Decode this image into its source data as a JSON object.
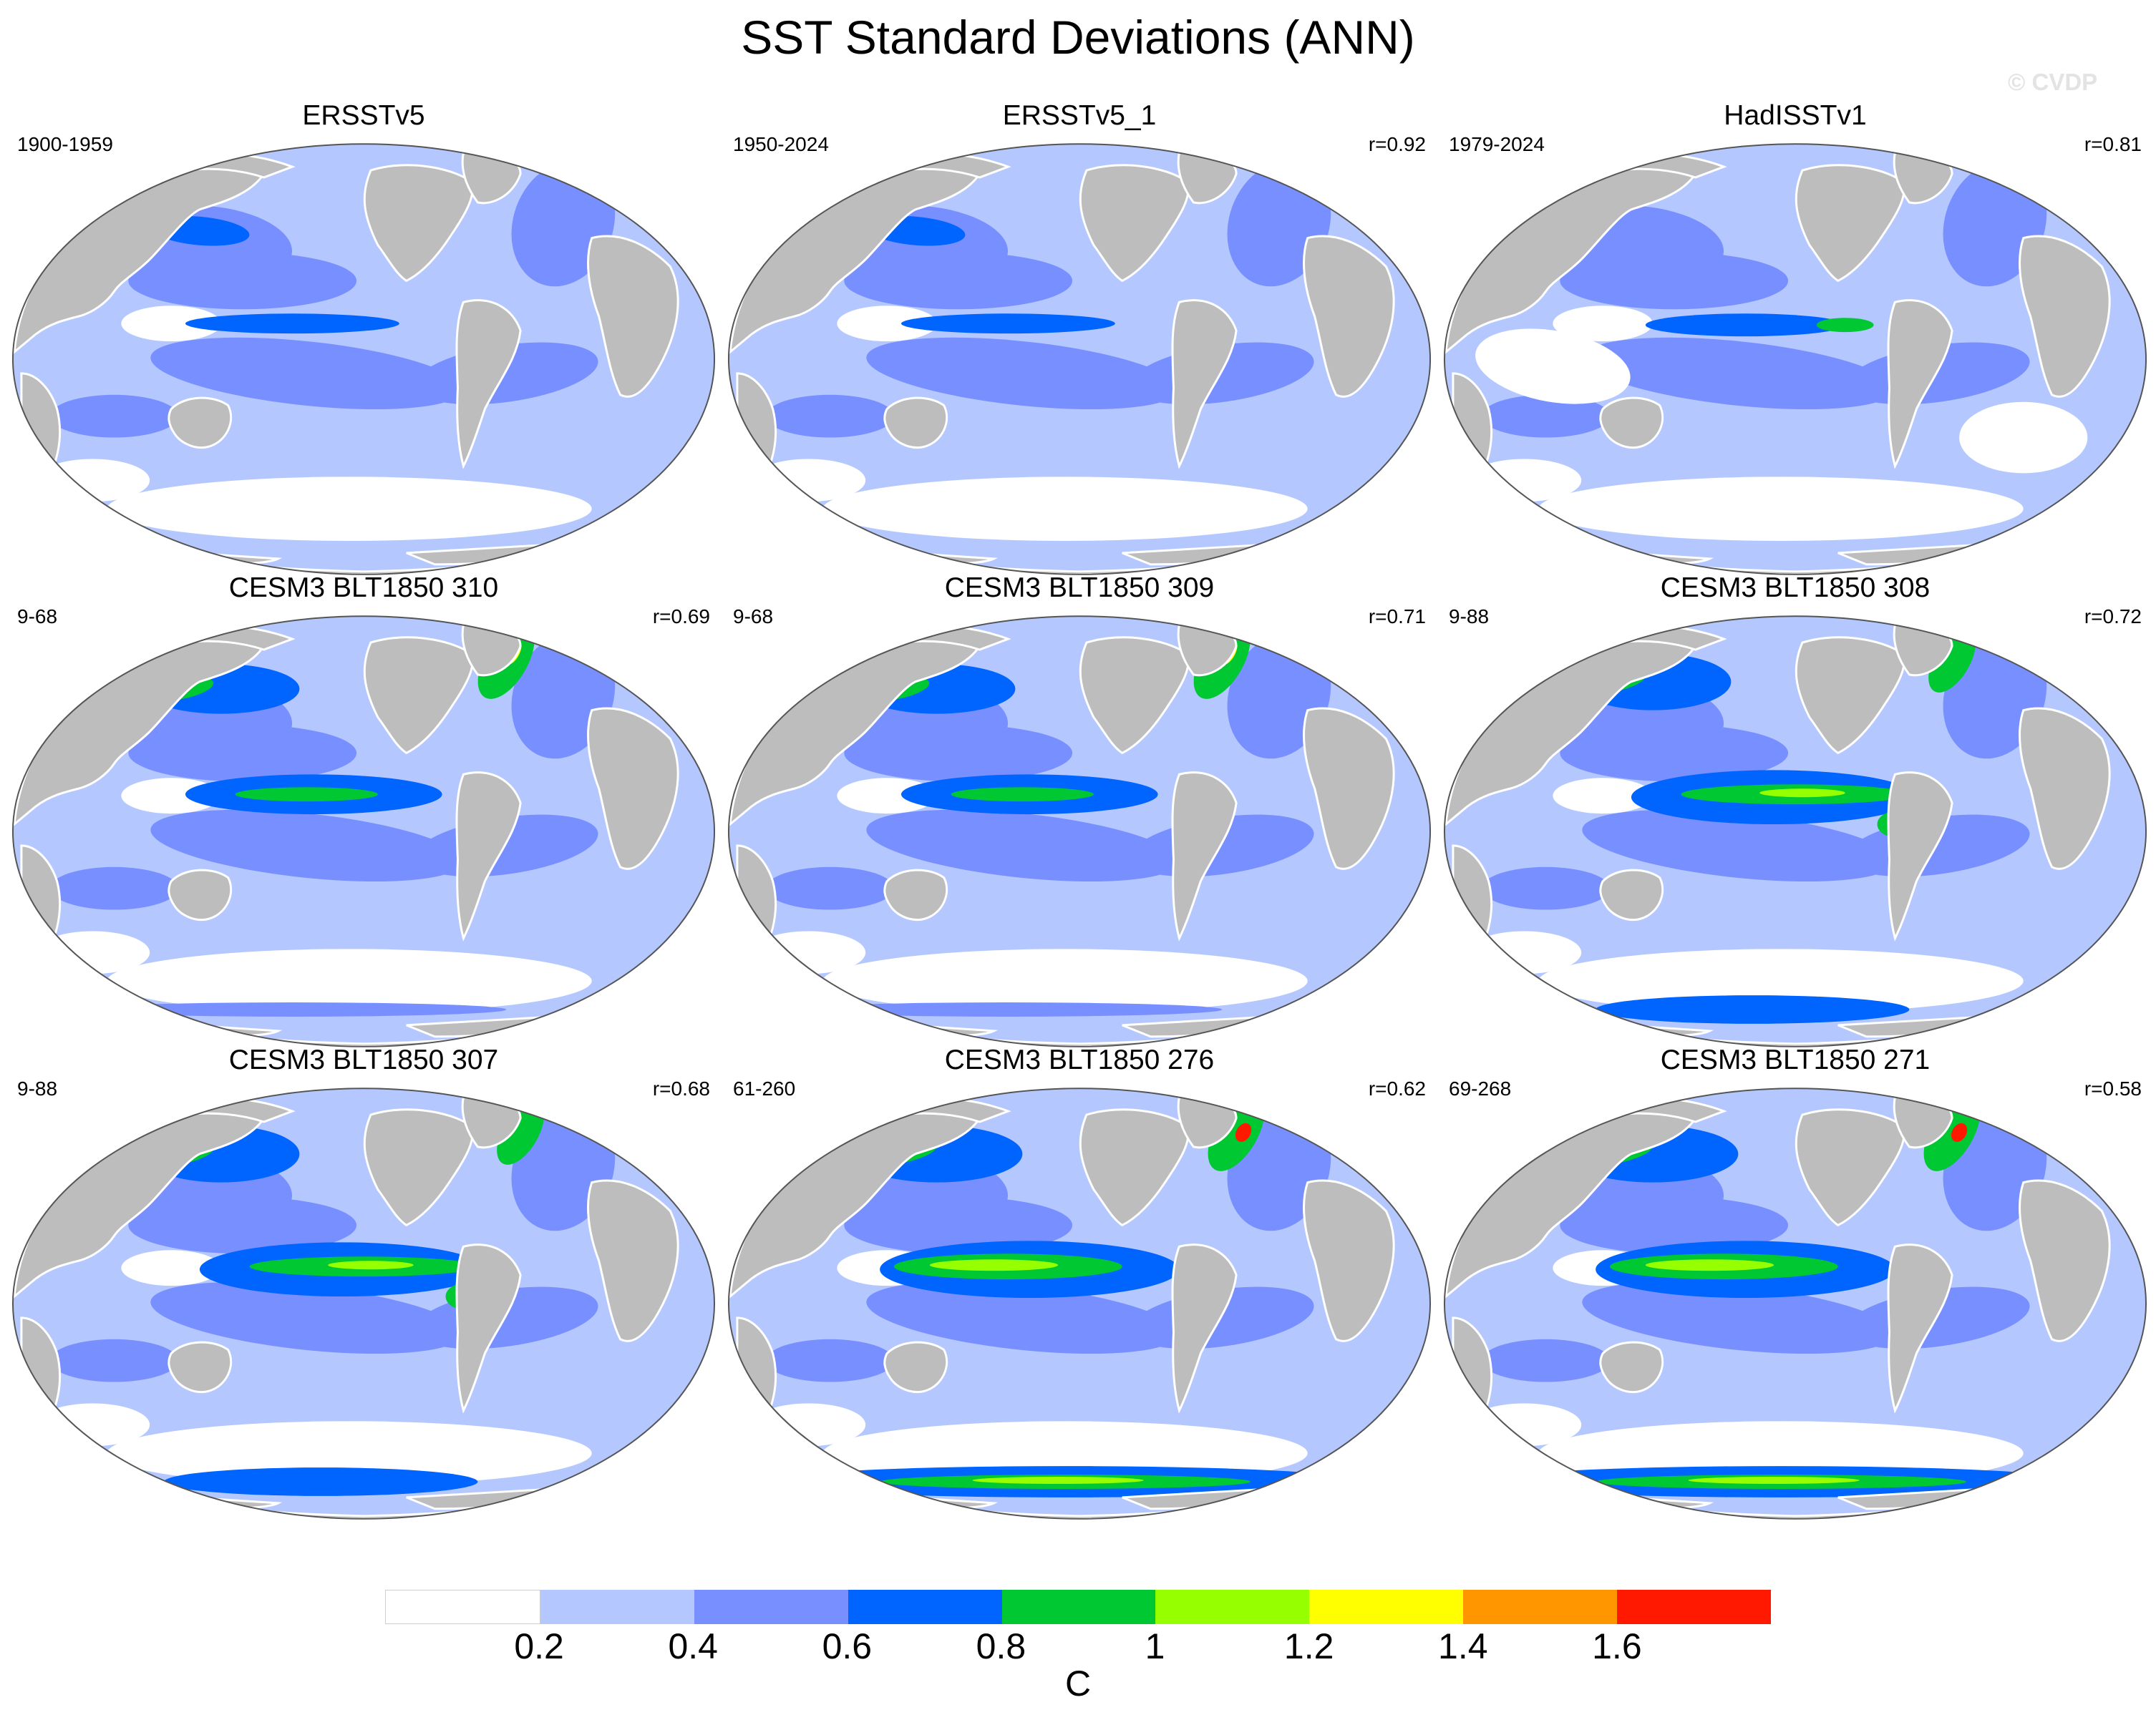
{
  "title": "SST Standard Deviations (ANN)",
  "watermark": "© CVDP",
  "panels": [
    {
      "title": "ERSSTv5",
      "period": "1900-1959",
      "corr": "",
      "variant": 0
    },
    {
      "title": "ERSSTv5_1",
      "period": "1950-2024",
      "corr": "r=0.92",
      "variant": 0
    },
    {
      "title": "HadISSTv1",
      "period": "1979-2024",
      "corr": "r=0.81",
      "variant": 1
    },
    {
      "title": "CESM3 BLT1850 310",
      "period": "9-68",
      "corr": "r=0.69",
      "variant": 2
    },
    {
      "title": "CESM3 BLT1850 309",
      "period": "9-68",
      "corr": "r=0.71",
      "variant": 2
    },
    {
      "title": "CESM3 BLT1850 308",
      "period": "9-88",
      "corr": "r=0.72",
      "variant": 3
    },
    {
      "title": "CESM3 BLT1850 307",
      "period": "9-88",
      "corr": "r=0.68",
      "variant": 3
    },
    {
      "title": "CESM3 BLT1850 276",
      "period": "61-260",
      "corr": "r=0.62",
      "variant": 4
    },
    {
      "title": "CESM3 BLT1850 271",
      "period": "69-268",
      "corr": "r=0.58",
      "variant": 4
    }
  ],
  "colorbar": {
    "colors": [
      "#ffffff",
      "#b4c8ff",
      "#7890ff",
      "#0064ff",
      "#00c832",
      "#96ff00",
      "#ffff00",
      "#ff9600",
      "#ff1900"
    ],
    "labels": [
      "0.2",
      "0.4",
      "0.6",
      "0.8",
      "1",
      "1.2",
      "1.4",
      "1.6"
    ],
    "unit": "C"
  },
  "palette": {
    "land": "#bdbdbd",
    "ocean_base": "#b4c8ff",
    "coast": "#ffffff"
  }
}
